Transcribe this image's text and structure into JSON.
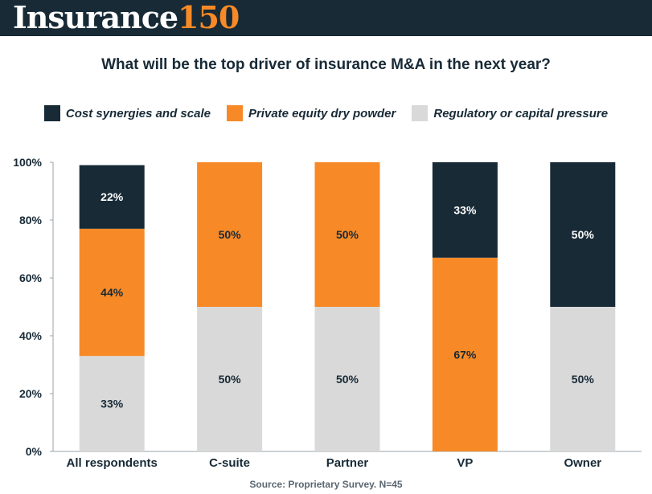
{
  "header": {
    "logo_word": "Insurance",
    "logo_number": "150"
  },
  "colors": {
    "header_bg": "#172a36",
    "cost_synergies": "#172a36",
    "private_equity": "#f78a27",
    "regulatory": "#d9d9d9",
    "logo_accent": "#f78a27"
  },
  "source": "Source: Proprietary Survey. N=45",
  "chart_data": {
    "type": "bar",
    "stacked": true,
    "title": "What will be the top driver of insurance M&A in the next year?",
    "categories": [
      "All respondents",
      "C-suite",
      "Partner",
      "VP",
      "Owner"
    ],
    "series": [
      {
        "name": "Regulatory or capital pressure",
        "color": "#d9d9d9",
        "values": [
          33,
          50,
          50,
          0,
          50
        ]
      },
      {
        "name": "Private equity dry powder",
        "color": "#f78a27",
        "values": [
          44,
          50,
          50,
          67,
          0
        ]
      },
      {
        "name": "Cost synergies and scale",
        "color": "#172a36",
        "values": [
          22,
          0,
          0,
          33,
          50
        ]
      }
    ],
    "legend_order": [
      "Cost synergies and scale",
      "Private equity dry powder",
      "Regulatory or capital pressure"
    ],
    "legend_position": "top",
    "y_ticks": [
      "0%",
      "20%",
      "40%",
      "60%",
      "80%",
      "100%"
    ],
    "ylim": [
      0,
      100
    ],
    "grid": false
  }
}
